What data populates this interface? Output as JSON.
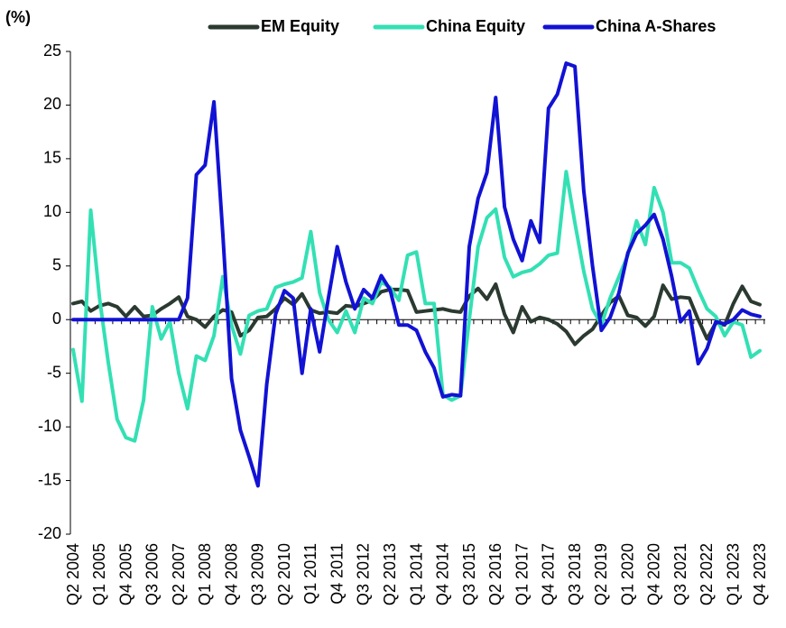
{
  "chart_data": {
    "type": "line",
    "y_label": "(%)",
    "categories": [
      "Q2 2004",
      null,
      null,
      "Q1 2005",
      null,
      null,
      "Q4 2005",
      null,
      null,
      "Q3 2006",
      null,
      null,
      "Q2 2007",
      null,
      null,
      "Q1 2008",
      null,
      null,
      "Q4 2008",
      null,
      null,
      "Q3 2009",
      null,
      null,
      "Q2 2010",
      null,
      null,
      "Q1 2011",
      null,
      null,
      "Q4 2011",
      null,
      null,
      "Q3 2012",
      null,
      null,
      "Q2 2013",
      null,
      null,
      "Q1 2014",
      null,
      null,
      "Q4 2014",
      null,
      null,
      "Q3 2015",
      null,
      null,
      "Q2 2016",
      null,
      null,
      "Q1 2017",
      null,
      null,
      "Q4 2017",
      null,
      null,
      "Q3 2018",
      null,
      null,
      "Q2 2019",
      null,
      null,
      "Q1 2020",
      null,
      null,
      "Q4 2020",
      null,
      null,
      "Q3 2021",
      null,
      null,
      "Q2 2022",
      null,
      null,
      "Q1 2023",
      null,
      null,
      "Q4 2023"
    ],
    "series": [
      {
        "name": "EM Equity",
        "color": "#2b3a31",
        "values": [
          1.5,
          1.7,
          0.8,
          1.3,
          1.5,
          1.2,
          0.3,
          1.2,
          0.3,
          0.4,
          1.0,
          1.5,
          2.1,
          0.3,
          0.0,
          -0.7,
          0.3,
          0.9,
          0.7,
          -1.5,
          -1.0,
          0.2,
          0.3,
          1.0,
          2.0,
          1.4,
          2.4,
          0.9,
          0.6,
          0.7,
          0.6,
          1.3,
          1.2,
          1.5,
          1.8,
          2.6,
          2.8,
          2.8,
          2.7,
          0.7,
          0.8,
          0.9,
          1.0,
          0.8,
          0.7,
          2.2,
          2.9,
          1.9,
          3.3,
          0.5,
          -1.2,
          1.2,
          -0.2,
          0.2,
          0.0,
          -0.4,
          -1.1,
          -2.3,
          -1.5,
          -0.9,
          0.4,
          1.6,
          2.2,
          0.4,
          0.2,
          -0.6,
          0.3,
          3.2,
          1.9,
          2.1,
          2.0,
          0.0,
          -1.8,
          -0.3,
          -0.5,
          1.5,
          3.1,
          1.7,
          1.4
        ]
      },
      {
        "name": "China Equity",
        "color": "#33e0b4",
        "values": [
          -2.8,
          -7.6,
          10.2,
          2.0,
          -4.0,
          -9.3,
          -11.0,
          -11.3,
          -7.5,
          1.2,
          -1.8,
          -0.2,
          -5.0,
          -8.3,
          -3.4,
          -3.8,
          -1.5,
          4.0,
          -0.5,
          -3.2,
          0.4,
          0.8,
          1.0,
          3.0,
          3.3,
          3.5,
          3.9,
          8.2,
          2.5,
          0.0,
          -1.2,
          0.8,
          -1.2,
          2.0,
          1.5,
          3.5,
          3.0,
          1.8,
          6.0,
          6.3,
          1.5,
          1.5,
          -7.0,
          -7.5,
          -7.1,
          0.0,
          6.8,
          9.5,
          10.3,
          5.8,
          4.0,
          4.4,
          4.6,
          5.2,
          6.0,
          6.2,
          13.8,
          9.0,
          4.5,
          1.0,
          -0.5,
          2.0,
          4.0,
          6.0,
          9.2,
          7.0,
          12.3,
          10.0,
          5.3,
          5.3,
          4.8,
          2.8,
          1.0,
          0.3,
          -1.5,
          -0.2,
          -0.5,
          -3.5,
          -2.9
        ]
      },
      {
        "name": "China A-Shares",
        "color": "#1212d4",
        "values": [
          0,
          0,
          0,
          0,
          0,
          0,
          0,
          0,
          0,
          0,
          0,
          0,
          0,
          2.0,
          13.5,
          14.4,
          20.3,
          8.0,
          -5.5,
          -10.3,
          -12.8,
          -15.5,
          -6.0,
          0.5,
          2.7,
          2.0,
          -5.0,
          1.0,
          -3.0,
          2.0,
          6.8,
          3.5,
          1.0,
          2.8,
          2.0,
          4.1,
          2.8,
          -0.5,
          -0.5,
          -1.0,
          -3.0,
          -4.5,
          -7.2,
          -7.0,
          -7.1,
          6.8,
          11.3,
          13.7,
          20.7,
          10.5,
          7.5,
          5.5,
          9.2,
          7.2,
          19.7,
          21.0,
          23.9,
          23.6,
          12.0,
          5.0,
          -1.0,
          0.2,
          2.5,
          6.2,
          8.0,
          8.8,
          9.8,
          7.5,
          4.0,
          -0.2,
          0.8,
          -4.1,
          -2.7,
          -0.2,
          -0.4,
          0.0,
          0.9,
          0.5,
          0.3
        ]
      }
    ],
    "ylim": [
      -20,
      25
    ],
    "yticks": [
      -20,
      -15,
      -10,
      -5,
      0,
      5,
      10,
      15,
      20,
      25
    ],
    "grid": false,
    "legend": "top"
  }
}
